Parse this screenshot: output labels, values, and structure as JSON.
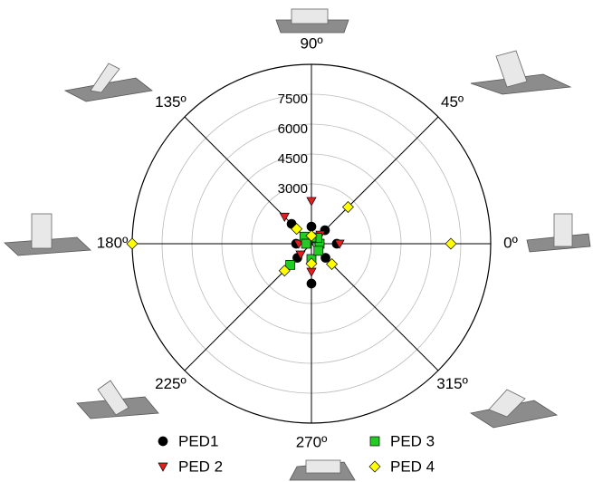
{
  "chart_data": {
    "type": "polar",
    "theta": [
      {
        "value": 0,
        "label": "0º"
      },
      {
        "value": 45,
        "label": "45º"
      },
      {
        "value": 90,
        "label": "90º"
      },
      {
        "value": 135,
        "label": "135º"
      },
      {
        "value": 180,
        "label": "180º"
      },
      {
        "value": 225,
        "label": "225º"
      },
      {
        "value": 270,
        "label": "270º"
      },
      {
        "value": 315,
        "label": "315º"
      }
    ],
    "rlim": [
      0,
      9000
    ],
    "rticks": [
      3000,
      4500,
      6000,
      7500
    ],
    "grid": true,
    "series": [
      {
        "name": "PED1",
        "color": "#000000",
        "marker": "circle",
        "values": [
          1270,
          960,
          860,
          1410,
          770,
          1000,
          2000,
          1000
        ]
      },
      {
        "name": "PED 2",
        "color": "#e02020",
        "marker": "triangle-down",
        "values": [
          1410,
          640,
          2140,
          1910,
          640,
          770,
          1410,
          500
        ]
      },
      {
        "name": "PED 3",
        "color": "#22cc22",
        "marker": "square",
        "values": [
          410,
          410,
          320,
          500,
          270,
          1500,
          770,
          500
        ]
      },
      {
        "name": "PED 4",
        "color": "#ffff00",
        "marker": "diamond",
        "values": [
          7000,
          2600,
          400,
          1050,
          9000,
          1910,
          1000,
          1450
        ]
      }
    ]
  }
}
